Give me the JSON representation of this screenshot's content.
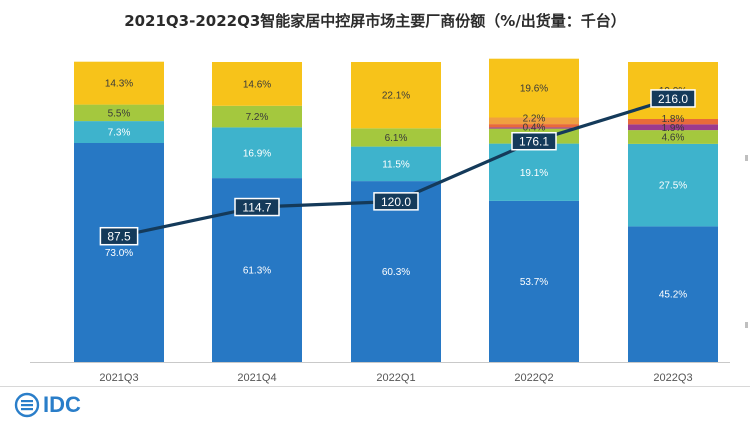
{
  "title": "2021Q3-2022Q3智能家居中控屏市场主要厂商份额（%/出货量：千台）",
  "logo": {
    "text": "IDC"
  },
  "colors": {
    "segment_1": "#2778c4",
    "segment_2": "#3eb3cc",
    "segment_3": "#a4c83e",
    "segment_4": "#9b3a8e",
    "segment_5": "#e86a3a",
    "segment_6": "#f0a040",
    "segment_7": "#f7c31a",
    "line": "#143a5a"
  },
  "chart_data": {
    "type": "bar",
    "stacked": true,
    "categories": [
      "2021Q3",
      "2021Q4",
      "2022Q1",
      "2022Q2",
      "2022Q3"
    ],
    "ylim": [
      0,
      100
    ],
    "series": [
      {
        "values": [
          73.0,
          61.3,
          60.3,
          53.7,
          45.2
        ],
        "labels": [
          "73.0%",
          "61.3%",
          "60.3%",
          "53.7%",
          "45.2%"
        ]
      },
      {
        "values": [
          7.3,
          16.9,
          11.5,
          19.1,
          27.5
        ],
        "labels": [
          "7.3%",
          "16.9%",
          "11.5%",
          "19.1%",
          "27.5%"
        ]
      },
      {
        "values": [
          5.5,
          7.2,
          6.1,
          5.0,
          4.6
        ],
        "labels": [
          "5.5%",
          "7.2%",
          "6.1%",
          "5.0%",
          "4.6%"
        ]
      },
      {
        "values": [
          0,
          0,
          0,
          0.4,
          1.9
        ],
        "labels": [
          "",
          "",
          "",
          "0.4%",
          "1.9%"
        ]
      },
      {
        "values": [
          0,
          0,
          0,
          1.1,
          1.8
        ],
        "labels": [
          "",
          "",
          "",
          "",
          "1.8%"
        ]
      },
      {
        "values": [
          0,
          0,
          0,
          2.2,
          0
        ],
        "labels": [
          "",
          "",
          "",
          "2.2%",
          ""
        ]
      },
      {
        "values": [
          14.3,
          14.6,
          22.1,
          19.6,
          19.0
        ],
        "labels": [
          "14.3%",
          "14.6%",
          "22.1%",
          "19.6%",
          "19.0%"
        ]
      }
    ],
    "line": {
      "values": [
        87.5,
        114.7,
        120.0,
        176.1,
        216.0
      ],
      "labels": [
        "87.5",
        "114.7",
        "120.0",
        "176.1",
        "216.0"
      ],
      "ylim": [
        0,
        250
      ]
    }
  }
}
